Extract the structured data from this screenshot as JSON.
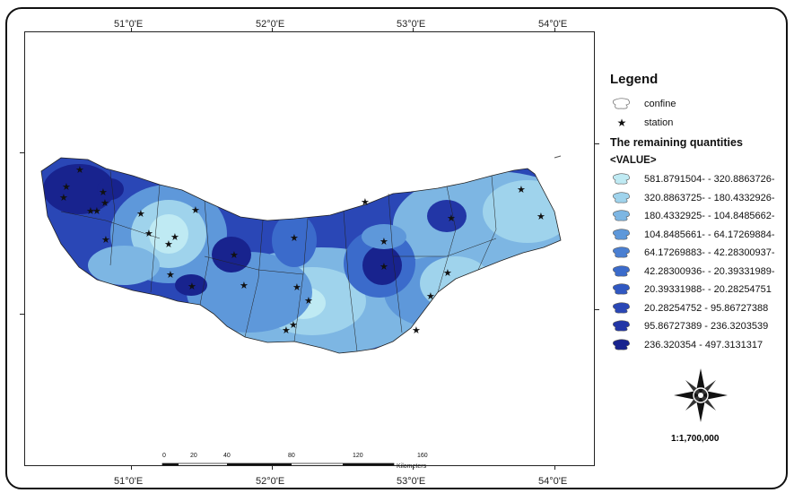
{
  "map": {
    "top_axis_labels": [
      "51°0'E",
      "52°0'E",
      "53°0'E",
      "54°0'E"
    ],
    "bottom_axis_labels": [
      "51°0'E",
      "52°0'E",
      "53°0'E",
      "54°0'E"
    ],
    "stations": 38
  },
  "legend": {
    "title": "Legend",
    "confine_label": "confine",
    "station_label": "station",
    "quantities_title": "The remaining quantities",
    "value_label": "<VALUE>",
    "classes": [
      {
        "label": "581.8791504- - 320.8863726-",
        "color": "#bfeaf3"
      },
      {
        "label": "320.8863725- - 180.4332926-",
        "color": "#9fd3ec"
      },
      {
        "label": "180.4332925- - 104.8485662-",
        "color": "#7db6e3"
      },
      {
        "label": "104.8485661- - 64.17269884-",
        "color": "#5e98da"
      },
      {
        "label": "64.17269883- - 42.28300937-",
        "color": "#4a7fd2"
      },
      {
        "label": "42.28300936- - 20.39331989-",
        "color": "#3b6bcb"
      },
      {
        "label": "20.39331988- - 20.28254751",
        "color": "#3058c2"
      },
      {
        "label": "20.28254752 - 95.86727388",
        "color": "#2a47b6"
      },
      {
        "label": "95.86727389 - 236.3203539",
        "color": "#2236a6"
      },
      {
        "label": "236.320354 - 497.3131317",
        "color": "#18238e"
      }
    ]
  },
  "scale": {
    "ratio": "1:1,700,000",
    "bar_labels": [
      "0",
      "20",
      "40",
      "80",
      "120",
      "160"
    ],
    "unit": "Kilometers"
  },
  "icons": {
    "compass": "compass-rose-icon",
    "station": "star-icon",
    "confine": "outline-shape-icon"
  }
}
